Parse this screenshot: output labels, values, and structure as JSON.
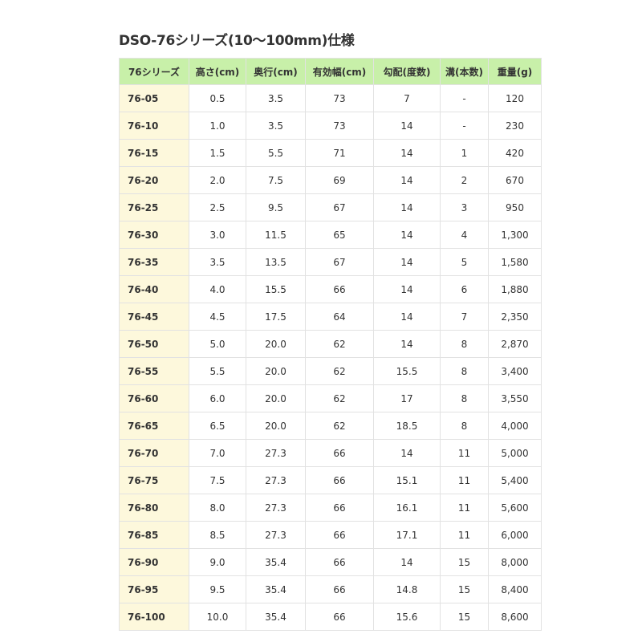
{
  "title": "DSO-76シリーズ(10〜100mm)仕様",
  "colors": {
    "header_bg": "#c8f0a9",
    "first_col_bg": "#fdf8dc",
    "border": "#e2e2e2"
  },
  "table": {
    "headers": [
      "76シリーズ",
      "高さ(cm)",
      "奥行(cm)",
      "有効幅(cm)",
      "勾配(度数)",
      "溝(本数)",
      "重量(g)"
    ],
    "rows": [
      [
        "76-05",
        "0.5",
        "3.5",
        "73",
        "7",
        "-",
        "120"
      ],
      [
        "76-10",
        "1.0",
        "3.5",
        "73",
        "14",
        "-",
        "230"
      ],
      [
        "76-15",
        "1.5",
        "5.5",
        "71",
        "14",
        "1",
        "420"
      ],
      [
        "76-20",
        "2.0",
        "7.5",
        "69",
        "14",
        "2",
        "670"
      ],
      [
        "76-25",
        "2.5",
        "9.5",
        "67",
        "14",
        "3",
        "950"
      ],
      [
        "76-30",
        "3.0",
        "11.5",
        "65",
        "14",
        "4",
        "1,300"
      ],
      [
        "76-35",
        "3.5",
        "13.5",
        "67",
        "14",
        "5",
        "1,580"
      ],
      [
        "76-40",
        "4.0",
        "15.5",
        "66",
        "14",
        "6",
        "1,880"
      ],
      [
        "76-45",
        "4.5",
        "17.5",
        "64",
        "14",
        "7",
        "2,350"
      ],
      [
        "76-50",
        "5.0",
        "20.0",
        "62",
        "14",
        "8",
        "2,870"
      ],
      [
        "76-55",
        "5.5",
        "20.0",
        "62",
        "15.5",
        "8",
        "3,400"
      ],
      [
        "76-60",
        "6.0",
        "20.0",
        "62",
        "17",
        "8",
        "3,550"
      ],
      [
        "76-65",
        "6.5",
        "20.0",
        "62",
        "18.5",
        "8",
        "4,000"
      ],
      [
        "76-70",
        "7.0",
        "27.3",
        "66",
        "14",
        "11",
        "5,000"
      ],
      [
        "76-75",
        "7.5",
        "27.3",
        "66",
        "15.1",
        "11",
        "5,400"
      ],
      [
        "76-80",
        "8.0",
        "27.3",
        "66",
        "16.1",
        "11",
        "5,600"
      ],
      [
        "76-85",
        "8.5",
        "27.3",
        "66",
        "17.1",
        "11",
        "6,000"
      ],
      [
        "76-90",
        "9.0",
        "35.4",
        "66",
        "14",
        "15",
        "8,000"
      ],
      [
        "76-95",
        "9.5",
        "35.4",
        "66",
        "14.8",
        "15",
        "8,400"
      ],
      [
        "76-100",
        "10.0",
        "35.4",
        "66",
        "15.6",
        "15",
        "8,600"
      ]
    ]
  }
}
